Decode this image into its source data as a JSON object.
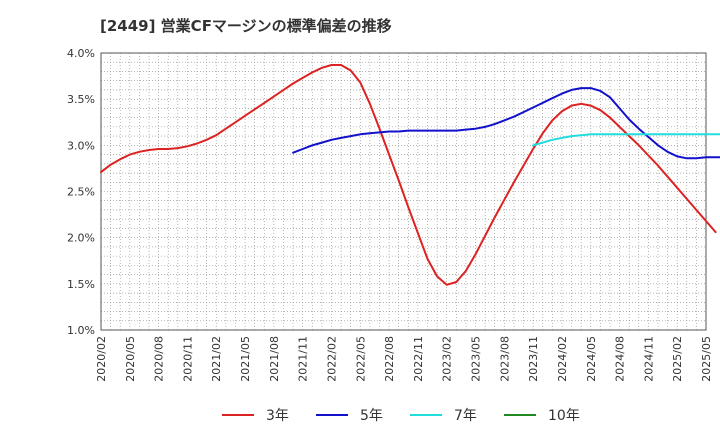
{
  "chart_data": {
    "type": "line",
    "title": "[2449]  営業CFマージンの標準偏差の推移",
    "xlabel": "",
    "ylabel": "",
    "ylim": [
      0.01,
      0.04
    ],
    "y_ticks": [
      "1.0%",
      "1.5%",
      "2.0%",
      "2.5%",
      "3.0%",
      "3.5%",
      "4.0%"
    ],
    "x_ticks": [
      "2020/02",
      "2020/05",
      "2020/08",
      "2020/11",
      "2021/02",
      "2021/05",
      "2021/08",
      "2021/11",
      "2022/02",
      "2022/05",
      "2022/08",
      "2022/11",
      "2023/02",
      "2023/05",
      "2023/08",
      "2023/11",
      "2024/02",
      "2024/05",
      "2024/08",
      "2024/11",
      "2025/02",
      "2025/05"
    ],
    "grid": true,
    "legend_position": "bottom",
    "series": [
      {
        "name": "3年",
        "color": "#dd2222",
        "points": [
          [
            "2020/02",
            0.0271
          ],
          [
            "2020/03",
            0.0279
          ],
          [
            "2020/04",
            0.0285
          ],
          [
            "2020/05",
            0.029
          ],
          [
            "2020/06",
            0.0293
          ],
          [
            "2020/07",
            0.0295
          ],
          [
            "2020/08",
            0.0296
          ],
          [
            "2020/09",
            0.0296
          ],
          [
            "2020/10",
            0.0297
          ],
          [
            "2020/11",
            0.0299
          ],
          [
            "2020/12",
            0.0302
          ],
          [
            "2021/01",
            0.0306
          ],
          [
            "2021/02",
            0.0311
          ],
          [
            "2021/03",
            0.0318
          ],
          [
            "2021/04",
            0.0325
          ],
          [
            "2021/05",
            0.0332
          ],
          [
            "2021/06",
            0.0339
          ],
          [
            "2021/07",
            0.0346
          ],
          [
            "2021/08",
            0.0353
          ],
          [
            "2021/09",
            0.036
          ],
          [
            "2021/10",
            0.0367
          ],
          [
            "2021/11",
            0.0373
          ],
          [
            "2021/12",
            0.0379
          ],
          [
            "2022/01",
            0.0384
          ],
          [
            "2022/02",
            0.0387
          ],
          [
            "2022/03",
            0.0387
          ],
          [
            "2022/04",
            0.0381
          ],
          [
            "2022/05",
            0.0368
          ],
          [
            "2022/06",
            0.0345
          ],
          [
            "2022/07",
            0.0318
          ],
          [
            "2022/08",
            0.029
          ],
          [
            "2022/09",
            0.0262
          ],
          [
            "2022/10",
            0.0233
          ],
          [
            "2022/11",
            0.0205
          ],
          [
            "2022/12",
            0.0177
          ],
          [
            "2023/01",
            0.0158
          ],
          [
            "2023/02",
            0.0149
          ],
          [
            "2023/03",
            0.0152
          ],
          [
            "2023/04",
            0.0164
          ],
          [
            "2023/05",
            0.0182
          ],
          [
            "2023/06",
            0.0202
          ],
          [
            "2023/07",
            0.0222
          ],
          [
            "2023/08",
            0.0241
          ],
          [
            "2023/09",
            0.026
          ],
          [
            "2023/10",
            0.0278
          ],
          [
            "2023/11",
            0.0296
          ],
          [
            "2023/12",
            0.0313
          ],
          [
            "2024/01",
            0.0327
          ],
          [
            "2024/02",
            0.0337
          ],
          [
            "2024/03",
            0.0343
          ],
          [
            "2024/04",
            0.0345
          ],
          [
            "2024/05",
            0.0343
          ],
          [
            "2024/06",
            0.0338
          ],
          [
            "2024/07",
            0.033
          ],
          [
            "2024/08",
            0.032
          ],
          [
            "2024/09",
            0.031
          ],
          [
            "2024/10",
            0.03
          ],
          [
            "2024/11",
            0.0289
          ],
          [
            "2024/12",
            0.0278
          ],
          [
            "2025/01",
            0.0266
          ],
          [
            "2025/02",
            0.0254
          ],
          [
            "2025/03",
            0.0242
          ],
          [
            "2025/04",
            0.023
          ],
          [
            "2025/05",
            0.0218
          ],
          [
            "2025/06",
            0.0206
          ]
        ]
      },
      {
        "name": "5年",
        "color": "#1111cc",
        "points": [
          [
            "2021/10",
            0.0292
          ],
          [
            "2021/11",
            0.0296
          ],
          [
            "2021/12",
            0.03
          ],
          [
            "2022/01",
            0.0303
          ],
          [
            "2022/02",
            0.0306
          ],
          [
            "2022/03",
            0.0308
          ],
          [
            "2022/04",
            0.031
          ],
          [
            "2022/05",
            0.0312
          ],
          [
            "2022/06",
            0.0313
          ],
          [
            "2022/07",
            0.0314
          ],
          [
            "2022/08",
            0.0315
          ],
          [
            "2022/09",
            0.0315
          ],
          [
            "2022/10",
            0.0316
          ],
          [
            "2022/11",
            0.0316
          ],
          [
            "2022/12",
            0.0316
          ],
          [
            "2023/01",
            0.0316
          ],
          [
            "2023/02",
            0.0316
          ],
          [
            "2023/03",
            0.0316
          ],
          [
            "2023/04",
            0.0317
          ],
          [
            "2023/05",
            0.0318
          ],
          [
            "2023/06",
            0.032
          ],
          [
            "2023/07",
            0.0323
          ],
          [
            "2023/08",
            0.0327
          ],
          [
            "2023/09",
            0.0331
          ],
          [
            "2023/10",
            0.0336
          ],
          [
            "2023/11",
            0.0341
          ],
          [
            "2023/12",
            0.0346
          ],
          [
            "2024/01",
            0.0351
          ],
          [
            "2024/02",
            0.0356
          ],
          [
            "2024/03",
            0.036
          ],
          [
            "2024/04",
            0.0362
          ],
          [
            "2024/05",
            0.0362
          ],
          [
            "2024/06",
            0.0359
          ],
          [
            "2024/07",
            0.0352
          ],
          [
            "2024/08",
            0.034
          ],
          [
            "2024/09",
            0.0328
          ],
          [
            "2024/10",
            0.0318
          ],
          [
            "2024/11",
            0.0309
          ],
          [
            "2024/12",
            0.03
          ],
          [
            "2025/01",
            0.0293
          ],
          [
            "2025/02",
            0.0288
          ],
          [
            "2025/03",
            0.0286
          ],
          [
            "2025/04",
            0.0286
          ],
          [
            "2025/05",
            0.0287
          ],
          [
            "2025/06",
            0.0287
          ],
          [
            "2025/07",
            0.0287
          ],
          [
            "2025/08",
            0.0286
          ]
        ]
      },
      {
        "name": "7年",
        "color": "#22dddd",
        "points": [
          [
            "2023/11",
            0.03
          ],
          [
            "2023/12",
            0.0303
          ],
          [
            "2024/01",
            0.0306
          ],
          [
            "2024/02",
            0.0308
          ],
          [
            "2024/03",
            0.031
          ],
          [
            "2024/04",
            0.0311
          ],
          [
            "2024/05",
            0.0312
          ],
          [
            "2024/06",
            0.0312
          ],
          [
            "2024/07",
            0.0312
          ],
          [
            "2024/08",
            0.0312
          ],
          [
            "2024/09",
            0.0312
          ],
          [
            "2024/10",
            0.0312
          ],
          [
            "2024/11",
            0.0312
          ],
          [
            "2024/12",
            0.0312
          ],
          [
            "2025/01",
            0.0312
          ],
          [
            "2025/02",
            0.0312
          ],
          [
            "2025/03",
            0.0312
          ],
          [
            "2025/04",
            0.0312
          ],
          [
            "2025/05",
            0.0312
          ],
          [
            "2025/06",
            0.0312
          ],
          [
            "2025/07",
            0.0312
          ],
          [
            "2025/08",
            0.0312
          ]
        ]
      },
      {
        "name": "10年",
        "color": "#228822",
        "points": []
      }
    ]
  }
}
